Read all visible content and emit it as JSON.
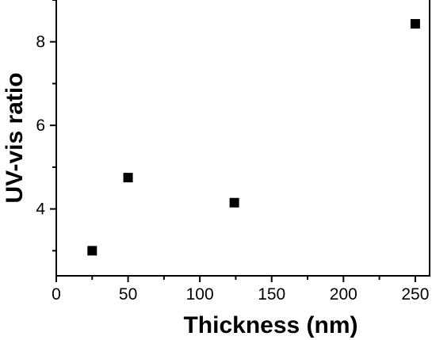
{
  "chart_data": {
    "type": "scatter",
    "title": "",
    "xlabel": "Thickness (nm)",
    "ylabel": "UV-vis ratio",
    "xlim": [
      0,
      260
    ],
    "ylim": [
      2.4,
      9.0
    ],
    "xticks": [
      0,
      50,
      100,
      150,
      200,
      250
    ],
    "yticks": [
      4,
      6,
      8
    ],
    "grid": false,
    "legend": "none",
    "marker": "square",
    "marker_color": "#000000",
    "series": [
      {
        "x": [
          25,
          50,
          124,
          250
        ],
        "y": [
          3.0,
          4.75,
          4.15,
          8.43
        ]
      }
    ]
  }
}
